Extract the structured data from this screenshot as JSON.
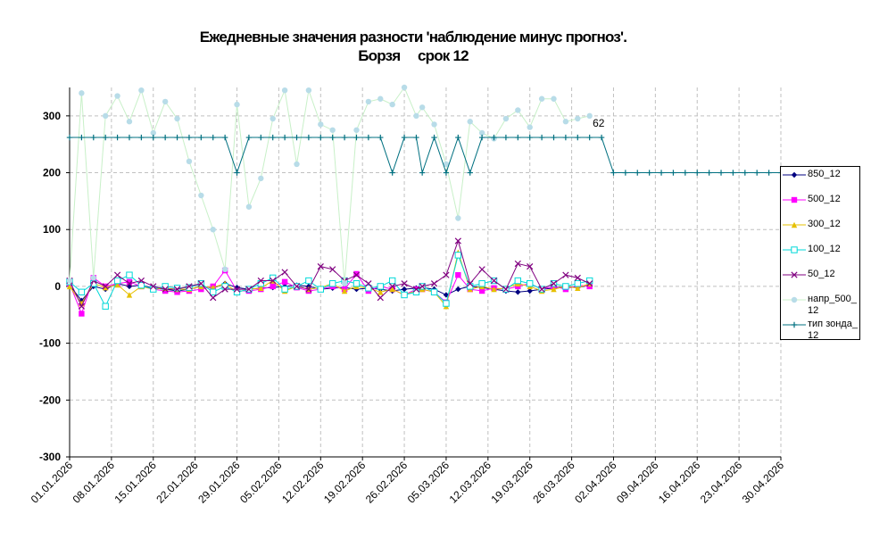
{
  "chart_data": {
    "type": "line",
    "title": "Ежедневные значения разности 'наблюдение минус прогноз'.",
    "subtitle": "Борзя     срок 12",
    "annotation": "62",
    "xlim": [
      "01.01.2026",
      "30.04.2026"
    ],
    "xticks": [
      "01.01.2026",
      "08.01.2026",
      "15.01.2026",
      "22.01.2026",
      "29.01.2026",
      "05.02.2026",
      "12.02.2026",
      "19.02.2026",
      "26.02.2026",
      "05.03.2026",
      "12.03.2026",
      "19.03.2026",
      "26.03.2026",
      "02.04.2026",
      "09.04.2026",
      "16.04.2026",
      "23.04.2026",
      "30.04.2026"
    ],
    "ylim": [
      -300,
      350
    ],
    "yticks": [
      -300,
      -200,
      -100,
      0,
      100,
      200,
      300
    ],
    "grid": true,
    "x": [
      "01.01.2026",
      "03.01.2026",
      "05.01.2026",
      "07.01.2026",
      "09.01.2026",
      "11.01.2026",
      "13.01.2026",
      "15.01.2026",
      "17.01.2026",
      "19.01.2026",
      "21.01.2026",
      "23.01.2026",
      "25.01.2026",
      "27.01.2026",
      "29.01.2026",
      "31.01.2026",
      "02.02.2026",
      "04.02.2026",
      "06.02.2026",
      "08.02.2026",
      "10.02.2026",
      "12.02.2026",
      "14.02.2026",
      "16.02.2026",
      "18.02.2026",
      "20.02.2026",
      "22.02.2026",
      "24.02.2026",
      "26.02.2026",
      "28.02.2026",
      "01.03.2026",
      "03.03.2026",
      "05.03.2026",
      "07.03.2026",
      "09.03.2026",
      "11.03.2026",
      "13.03.2026",
      "15.03.2026",
      "17.03.2026",
      "19.03.2026",
      "21.03.2026",
      "23.03.2026",
      "25.03.2026",
      "27.03.2026",
      "29.03.2026",
      "31.03.2026",
      "02.04.2026",
      "04.04.2026",
      "06.04.2026",
      "08.04.2026",
      "10.04.2026",
      "12.04.2026",
      "14.04.2026",
      "16.04.2026",
      "18.04.2026",
      "20.04.2026",
      "22.04.2026",
      "24.04.2026",
      "26.04.2026",
      "28.04.2026",
      "30.04.2026"
    ],
    "series": [
      {
        "name": "850_12",
        "color": "#000080",
        "marker": "diamond",
        "values": [
          2,
          -25,
          0,
          -5,
          5,
          0,
          2,
          -3,
          -5,
          -8,
          -5,
          0,
          -3,
          5,
          -2,
          -5,
          -3,
          -2,
          0,
          2,
          0,
          -5,
          -3,
          -2,
          -5,
          -3,
          -5,
          -8,
          -5,
          -3,
          -2,
          -5,
          -15,
          -5,
          0,
          -2,
          -5,
          -8,
          -10,
          -8,
          -5,
          -3,
          0,
          -2,
          2,
          null,
          null,
          null,
          null,
          null,
          null,
          null,
          null,
          null,
          null,
          null,
          null,
          null,
          null,
          null,
          null
        ]
      },
      {
        "name": "500_12",
        "color": "#ff00ff",
        "marker": "square",
        "values": [
          5,
          -48,
          15,
          0,
          5,
          8,
          0,
          -5,
          -8,
          -10,
          -8,
          -5,
          0,
          28,
          -8,
          -8,
          -5,
          0,
          8,
          -2,
          -8,
          -5,
          0,
          -5,
          22,
          -8,
          0,
          -5,
          -15,
          -5,
          -5,
          -10,
          -28,
          20,
          -5,
          -8,
          -3,
          -5,
          0,
          5,
          -5,
          0,
          -5,
          2,
          0,
          null,
          null,
          null,
          null,
          null,
          null,
          null,
          null,
          null,
          null,
          null,
          null,
          null,
          null,
          null,
          null
        ]
      },
      {
        "name": "300_12",
        "color": "#e6c000",
        "marker": "triangle",
        "values": [
          0,
          -30,
          5,
          -2,
          3,
          -15,
          0,
          -5,
          -3,
          -5,
          -5,
          0,
          -2,
          5,
          -10,
          -5,
          -3,
          10,
          -8,
          0,
          -5,
          -2,
          5,
          -8,
          0,
          -3,
          -10,
          -5,
          -15,
          -8,
          -5,
          -10,
          -35,
          60,
          -5,
          0,
          -5,
          -3,
          5,
          0,
          -8,
          -5,
          0,
          -3,
          5,
          null,
          null,
          null,
          null,
          null,
          null,
          null,
          null,
          null,
          null,
          null,
          null,
          null,
          null,
          null,
          null
        ]
      },
      {
        "name": "100_12",
        "color": "#00d8d8",
        "marker": "square-open",
        "values": [
          8,
          -10,
          5,
          -35,
          10,
          20,
          2,
          -5,
          0,
          -3,
          -2,
          5,
          -10,
          0,
          -10,
          -5,
          5,
          15,
          -5,
          0,
          10,
          -5,
          5,
          10,
          5,
          -3,
          0,
          10,
          -15,
          -10,
          0,
          -10,
          -30,
          55,
          0,
          5,
          10,
          -5,
          10,
          5,
          -5,
          5,
          0,
          5,
          10,
          null,
          null,
          null,
          null,
          null,
          null,
          null,
          null,
          null,
          null,
          null,
          null,
          null,
          null,
          null,
          null
        ]
      },
      {
        "name": "50_12",
        "color": "#800080",
        "marker": "x",
        "values": [
          10,
          -35,
          10,
          0,
          20,
          5,
          10,
          0,
          -5,
          -5,
          0,
          5,
          -20,
          -5,
          -5,
          -5,
          10,
          10,
          25,
          0,
          -5,
          35,
          30,
          10,
          20,
          5,
          -20,
          0,
          5,
          -5,
          0,
          5,
          20,
          80,
          5,
          30,
          10,
          -5,
          40,
          35,
          -5,
          5,
          20,
          15,
          5,
          null,
          null,
          null,
          null,
          null,
          null,
          null,
          null,
          null,
          null,
          null,
          null,
          null,
          null,
          null,
          null
        ]
      },
      {
        "name": "напр_500_12",
        "color": "#b8dce8",
        "line_color": "#c8f0c8",
        "marker": "circle",
        "values": [
          10,
          340,
          15,
          300,
          335,
          290,
          345,
          270,
          325,
          295,
          220,
          160,
          100,
          30,
          320,
          140,
          190,
          295,
          345,
          215,
          345,
          285,
          275,
          5,
          275,
          325,
          330,
          320,
          350,
          300,
          315,
          285,
          215,
          120,
          290,
          270,
          260,
          295,
          310,
          280,
          330,
          330,
          290,
          295,
          300,
          null,
          null,
          null,
          null,
          null,
          null,
          null,
          null,
          null,
          null,
          null,
          null,
          null,
          null,
          null,
          null
        ]
      },
      {
        "name": "тип зонда_12",
        "color": "#007080",
        "marker": "plus",
        "values": [
          262,
          262,
          262,
          262,
          262,
          262,
          262,
          262,
          262,
          262,
          262,
          262,
          262,
          262,
          200,
          262,
          262,
          262,
          262,
          262,
          262,
          262,
          262,
          262,
          262,
          262,
          262,
          200,
          262,
          262,
          200,
          262,
          200,
          262,
          200,
          262,
          262,
          262,
          262,
          262,
          262,
          262,
          262,
          262,
          262,
          262,
          200,
          200,
          200,
          200,
          200,
          200,
          200,
          200,
          200,
          200,
          200,
          200,
          200,
          200,
          200
        ]
      }
    ]
  }
}
